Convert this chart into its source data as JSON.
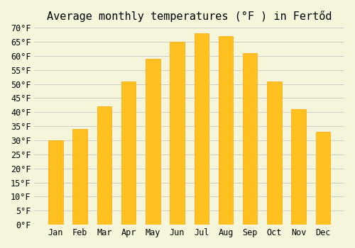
{
  "title": "Average monthly temperatures (°F ) in Fertőd",
  "months": [
    "Jan",
    "Feb",
    "Mar",
    "Apr",
    "May",
    "Jun",
    "Jul",
    "Aug",
    "Sep",
    "Oct",
    "Nov",
    "Dec"
  ],
  "values": [
    30,
    34,
    42,
    51,
    59,
    65,
    68,
    67,
    61,
    51,
    41,
    33
  ],
  "bar_color": "#FFC020",
  "bar_edge_color": "#FFA500",
  "background_color": "#F5F5DC",
  "grid_color": "#CCCCCC",
  "ylim": [
    0,
    70
  ],
  "yticks": [
    0,
    5,
    10,
    15,
    20,
    25,
    30,
    35,
    40,
    45,
    50,
    55,
    60,
    65,
    70
  ],
  "title_fontsize": 11,
  "tick_fontsize": 8.5,
  "font_family": "monospace"
}
